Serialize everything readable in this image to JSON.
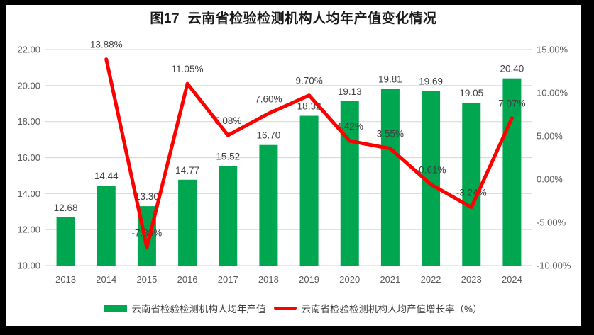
{
  "title": "图17  云南省检验检测机构人均年产值变化情况",
  "colors": {
    "frame": "#000000",
    "background": "#FFFFFF",
    "bar": "#00A650",
    "line": "#FF0000",
    "grid": "#D9D9D9",
    "tick_text": "#595959",
    "label_text": "#404040",
    "title_text": "#1A1A1A"
  },
  "chart_data": {
    "type": "bar",
    "combo": "bar+line",
    "title": "图17  云南省检验检测机构人均年产值变化情况",
    "categories": [
      "2013",
      "2014",
      "2015",
      "2016",
      "2017",
      "2018",
      "2019",
      "2020",
      "2021",
      "2022",
      "2023",
      "2024"
    ],
    "series": [
      {
        "name": "云南省检验检测机构人均年产值",
        "type": "bar",
        "axis": "left",
        "color": "#00A650",
        "values": [
          12.68,
          14.44,
          13.3,
          14.77,
          15.52,
          16.7,
          18.32,
          19.13,
          19.81,
          19.69,
          19.05,
          20.4
        ],
        "data_labels": [
          "12.68",
          "14.44",
          "13.30",
          "14.77",
          "15.52",
          "16.70",
          "18.32",
          "19.13",
          "19.81",
          "19.69",
          "19.05",
          "20.40"
        ]
      },
      {
        "name": "云南省检验检测机构人均产值增长率（%）",
        "type": "line",
        "axis": "right",
        "color": "#FF0000",
        "values": [
          null,
          13.88,
          -7.89,
          11.05,
          5.08,
          7.6,
          9.7,
          4.42,
          3.55,
          -0.61,
          -3.24,
          7.07
        ],
        "data_labels": [
          null,
          "13.88%",
          "-7.89%",
          "11.05%",
          "5.08%",
          "7.60%",
          "9.70%",
          "4.42%",
          "3.55%",
          "-0.61%",
          "-3.24%",
          "7.07%"
        ]
      }
    ],
    "left_axis": {
      "min": 10,
      "max": 22,
      "step": 2,
      "tick_labels": [
        "10.00",
        "12.00",
        "14.00",
        "16.00",
        "18.00",
        "20.00",
        "22.00"
      ]
    },
    "right_axis": {
      "min": -10,
      "max": 15,
      "step": 5,
      "tick_labels": [
        "-10.00%",
        "-5.00%",
        "0.00%",
        "5.00%",
        "10.00%",
        "15.00%"
      ]
    },
    "grid": true,
    "legend_position": "bottom"
  }
}
